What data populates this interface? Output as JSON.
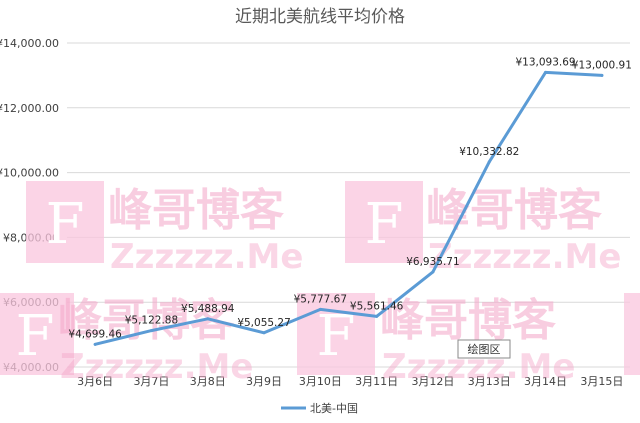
{
  "chart_data": {
    "type": "line",
    "title": "近期北美航线平均价格",
    "categories": [
      "3月6日",
      "3月7日",
      "3月8日",
      "3月9日",
      "3月10日",
      "3月11日",
      "3月12日",
      "3月13日",
      "3月14日",
      "3月15日"
    ],
    "series": [
      {
        "name": "北美-中国",
        "values": [
          4699.46,
          5122.88,
          5488.94,
          5055.27,
          5777.67,
          5561.46,
          6935.71,
          10332.82,
          13093.69,
          13000.91
        ],
        "data_labels": [
          "¥4,699.46",
          "¥5,122.88",
          "¥5,488.94",
          "¥5,055.27",
          "¥5,777.67",
          "¥5,561.46",
          "¥6,935.71",
          "¥10,332.82",
          "¥13,093.69",
          "¥13,000.91"
        ]
      }
    ],
    "y_ticks": [
      "¥4,000.00",
      "¥6,000.00",
      "¥8,000.00",
      "¥10,000.00",
      "¥12,000.00",
      "¥14,000.00"
    ],
    "ylim": [
      4000,
      14000
    ],
    "grid": true,
    "legend": "bottom",
    "colors": {
      "line": "#5b9bd5",
      "grid": "#d9d9d9",
      "watermark": "#f4a6c8",
      "watermark_block": "#f9c6dd"
    }
  },
  "watermark": {
    "glyph": "F",
    "text": "峰哥博客",
    "domain": "Zzzzzz.Me"
  },
  "tooltip": {
    "label": "绘图区"
  }
}
